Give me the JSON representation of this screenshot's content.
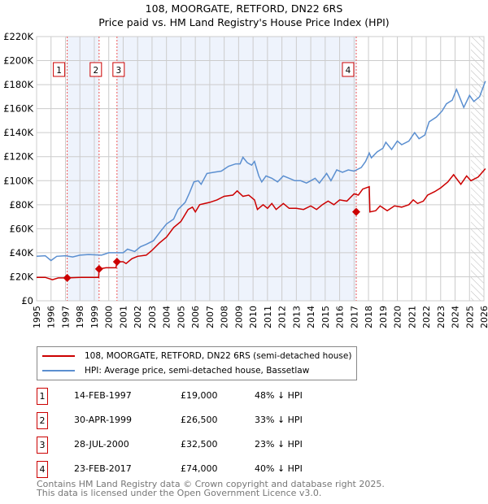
{
  "chart_data": {
    "type": "line",
    "title": "108, MOORGATE, RETFORD, DN22 6RS",
    "subtitle": "Price paid vs. HM Land Registry's House Price Index (HPI)",
    "xlim": [
      1995,
      2026
    ],
    "ylim": [
      0,
      220000
    ],
    "x_ticks": [
      "1995",
      "1996",
      "1997",
      "1998",
      "1999",
      "2000",
      "2001",
      "2002",
      "2003",
      "2004",
      "2005",
      "2006",
      "2007",
      "2008",
      "2009",
      "2010",
      "2011",
      "2012",
      "2013",
      "2014",
      "2015",
      "2016",
      "2017",
      "2018",
      "2019",
      "2020",
      "2021",
      "2022",
      "2023",
      "2024",
      "2025",
      "2026"
    ],
    "y_ticks": [
      {
        "v": 0,
        "l": "£0"
      },
      {
        "v": 20000,
        "l": "£20K"
      },
      {
        "v": 40000,
        "l": "£40K"
      },
      {
        "v": 60000,
        "l": "£60K"
      },
      {
        "v": 80000,
        "l": "£80K"
      },
      {
        "v": 100000,
        "l": "£100K"
      },
      {
        "v": 120000,
        "l": "£120K"
      },
      {
        "v": 140000,
        "l": "£140K"
      },
      {
        "v": 160000,
        "l": "£160K"
      },
      {
        "v": 180000,
        "l": "£180K"
      },
      {
        "v": 200000,
        "l": "£200K"
      },
      {
        "v": 220000,
        "l": "£220K"
      }
    ],
    "series": [
      {
        "name": "108, MOORGATE, RETFORD, DN22 6RS (semi-detached house)",
        "color": "#cc0000",
        "points": [
          [
            1995,
            19500
          ],
          [
            1995.6,
            19500
          ],
          [
            1996.1,
            17500
          ],
          [
            1996.5,
            19000
          ],
          [
            1997.12,
            19000
          ],
          [
            1998,
            19500
          ],
          [
            1999.3,
            19500
          ],
          [
            1999.33,
            26500
          ],
          [
            1999.8,
            27500
          ],
          [
            2000.5,
            27500
          ],
          [
            2000.57,
            32500
          ],
          [
            2001,
            32500
          ],
          [
            2001.2,
            31000
          ],
          [
            2001.6,
            35000
          ],
          [
            2002,
            37000
          ],
          [
            2002.6,
            38000
          ],
          [
            2003,
            42000
          ],
          [
            2003.5,
            48000
          ],
          [
            2004,
            53000
          ],
          [
            2004.5,
            61000
          ],
          [
            2005,
            66000
          ],
          [
            2005.5,
            76000
          ],
          [
            2005.8,
            78000
          ],
          [
            2006,
            74000
          ],
          [
            2006.3,
            80000
          ],
          [
            2007,
            82000
          ],
          [
            2007.5,
            84000
          ],
          [
            2008,
            87000
          ],
          [
            2008.6,
            88000
          ],
          [
            2008.9,
            91500
          ],
          [
            2009.3,
            87000
          ],
          [
            2009.7,
            88000
          ],
          [
            2010.1,
            84000
          ],
          [
            2010.3,
            76000
          ],
          [
            2010.7,
            80000
          ],
          [
            2011,
            77000
          ],
          [
            2011.3,
            81000
          ],
          [
            2011.6,
            76000
          ],
          [
            2012.1,
            81000
          ],
          [
            2012.5,
            77000
          ],
          [
            2013,
            77000
          ],
          [
            2013.5,
            76000
          ],
          [
            2014,
            79000
          ],
          [
            2014.4,
            76000
          ],
          [
            2014.8,
            80000
          ],
          [
            2015.2,
            83000
          ],
          [
            2015.6,
            80000
          ],
          [
            2016,
            84000
          ],
          [
            2016.5,
            83000
          ],
          [
            2017,
            89000
          ],
          [
            2017.3,
            88000
          ],
          [
            2017.6,
            93000
          ],
          [
            2018.05,
            95000
          ],
          [
            2018.1,
            74000
          ],
          [
            2018.5,
            75000
          ],
          [
            2018.8,
            79000
          ],
          [
            2019.3,
            75000
          ],
          [
            2019.8,
            79000
          ],
          [
            2020.3,
            78000
          ],
          [
            2020.8,
            80000
          ],
          [
            2021.1,
            84000
          ],
          [
            2021.4,
            81000
          ],
          [
            2021.8,
            83000
          ],
          [
            2022.1,
            88000
          ],
          [
            2022.6,
            91000
          ],
          [
            2023,
            94000
          ],
          [
            2023.5,
            99000
          ],
          [
            2023.9,
            105000
          ],
          [
            2024.4,
            97000
          ],
          [
            2024.8,
            104000
          ],
          [
            2025.1,
            100000
          ],
          [
            2025.6,
            103000
          ],
          [
            2026.1,
            110000
          ]
        ]
      },
      {
        "name": "HPI: Average price, semi-detached house, Bassetlaw",
        "color": "#5b8fd0",
        "points": [
          [
            1995,
            37000
          ],
          [
            1995.6,
            37500
          ],
          [
            1996,
            33500
          ],
          [
            1996.4,
            37000
          ],
          [
            1997,
            37500
          ],
          [
            1997.5,
            36500
          ],
          [
            1998,
            38000
          ],
          [
            1998.6,
            38500
          ],
          [
            1999.5,
            38000
          ],
          [
            2000,
            40000
          ],
          [
            2000.5,
            40000
          ],
          [
            2001,
            40000
          ],
          [
            2001.3,
            43000
          ],
          [
            2001.8,
            41000
          ],
          [
            2002.2,
            45000
          ],
          [
            2002.6,
            47000
          ],
          [
            2003.1,
            50000
          ],
          [
            2003.6,
            58000
          ],
          [
            2004,
            64000
          ],
          [
            2004.5,
            68000
          ],
          [
            2004.8,
            76000
          ],
          [
            2005.3,
            82000
          ],
          [
            2005.6,
            90000
          ],
          [
            2005.9,
            99000
          ],
          [
            2006.2,
            100000
          ],
          [
            2006.4,
            97000
          ],
          [
            2006.8,
            106000
          ],
          [
            2007.3,
            107000
          ],
          [
            2007.8,
            108000
          ],
          [
            2008.3,
            112000
          ],
          [
            2008.8,
            114000
          ],
          [
            2009.1,
            114000
          ],
          [
            2009.3,
            119500
          ],
          [
            2009.6,
            115000
          ],
          [
            2009.9,
            113000
          ],
          [
            2010.1,
            116000
          ],
          [
            2010.4,
            104000
          ],
          [
            2010.6,
            99000
          ],
          [
            2010.9,
            104000
          ],
          [
            2011.3,
            102000
          ],
          [
            2011.7,
            99000
          ],
          [
            2012.1,
            104000
          ],
          [
            2012.5,
            102000
          ],
          [
            2012.9,
            100000
          ],
          [
            2013.3,
            100000
          ],
          [
            2013.7,
            98000
          ],
          [
            2014,
            100000
          ],
          [
            2014.3,
            102000
          ],
          [
            2014.6,
            98000
          ],
          [
            2015.1,
            106000
          ],
          [
            2015.4,
            100000
          ],
          [
            2015.8,
            109000
          ],
          [
            2016.2,
            107000
          ],
          [
            2016.6,
            109000
          ],
          [
            2017,
            108000
          ],
          [
            2017.5,
            111000
          ],
          [
            2017.8,
            116000
          ],
          [
            2018.05,
            123000
          ],
          [
            2018.2,
            119000
          ],
          [
            2018.6,
            124000
          ],
          [
            2019,
            127000
          ],
          [
            2019.2,
            132000
          ],
          [
            2019.6,
            126000
          ],
          [
            2020,
            133000
          ],
          [
            2020.3,
            130000
          ],
          [
            2020.8,
            133000
          ],
          [
            2021.2,
            140000
          ],
          [
            2021.5,
            135000
          ],
          [
            2021.9,
            138000
          ],
          [
            2022.2,
            149000
          ],
          [
            2022.7,
            153000
          ],
          [
            2023.1,
            158000
          ],
          [
            2023.4,
            164000
          ],
          [
            2023.8,
            167000
          ],
          [
            2024.1,
            176000
          ],
          [
            2024.6,
            161000
          ],
          [
            2025,
            171000
          ],
          [
            2025.3,
            166000
          ],
          [
            2025.7,
            170000
          ],
          [
            2026.1,
            183000
          ]
        ]
      }
    ],
    "sales": [
      {
        "id": "1",
        "x": 1997.12,
        "y": 19000
      },
      {
        "id": "2",
        "x": 1999.33,
        "y": 26500
      },
      {
        "id": "3",
        "x": 2000.57,
        "y": 32500
      },
      {
        "id": "4",
        "x": 2017.15,
        "y": 74000
      }
    ],
    "shaded_ranges": [
      [
        1997.12,
        1999.33
      ],
      [
        2000.57,
        2017.15
      ]
    ],
    "forecast_from": 2025.1,
    "legend_position": "bottom"
  },
  "table": [
    {
      "id": "1",
      "date": "14-FEB-1997",
      "price": "£19,000",
      "hpi": "48% ↓ HPI"
    },
    {
      "id": "2",
      "date": "30-APR-1999",
      "price": "£26,500",
      "hpi": "33% ↓ HPI"
    },
    {
      "id": "3",
      "date": "28-JUL-2000",
      "price": "£32,500",
      "hpi": "23% ↓ HPI"
    },
    {
      "id": "4",
      "date": "23-FEB-2017",
      "price": "£74,000",
      "hpi": "40% ↓ HPI"
    }
  ],
  "footer": [
    "Contains HM Land Registry data © Crown copyright and database right 2025.",
    "This data is licensed under the Open Government Licence v3.0."
  ]
}
